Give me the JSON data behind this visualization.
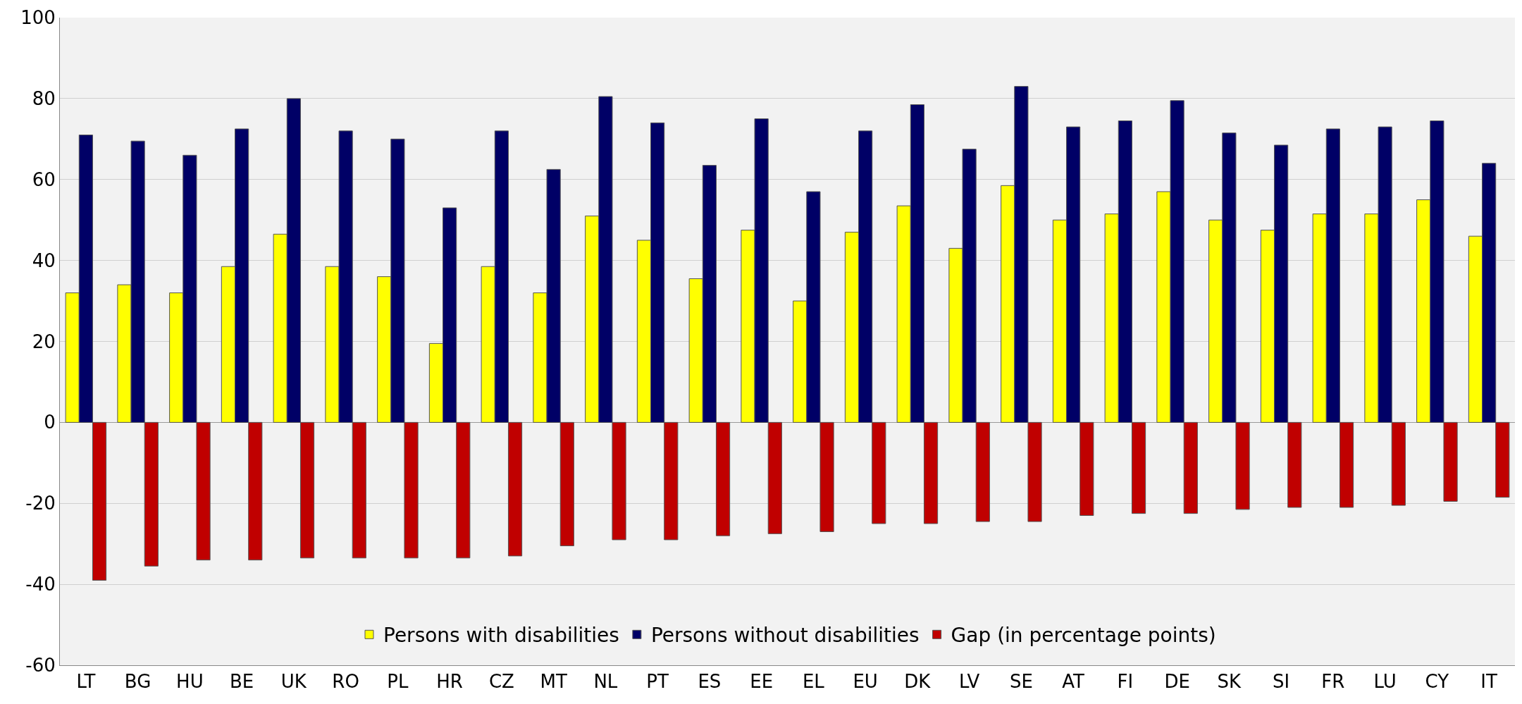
{
  "chart_data": {
    "type": "bar",
    "categories": [
      "LT",
      "BG",
      "HU",
      "BE",
      "UK",
      "RO",
      "PL",
      "HR",
      "CZ",
      "MT",
      "NL",
      "PT",
      "ES",
      "EE",
      "EL",
      "EU",
      "DK",
      "LV",
      "SE",
      "AT",
      "FI",
      "DE",
      "SK",
      "SI",
      "FR",
      "LU",
      "CY",
      "IT"
    ],
    "series": [
      {
        "name": "Persons with disabilities",
        "color": "#ffff00",
        "values": [
          32,
          34,
          32,
          38.5,
          46.5,
          38.5,
          36,
          19.5,
          38.5,
          32,
          51,
          45,
          35.5,
          47.5,
          30,
          47,
          53.5,
          43,
          58.5,
          50,
          51.5,
          57,
          50,
          47.5,
          51.5,
          51.5,
          55,
          46
        ]
      },
      {
        "name": "Persons without disabilities",
        "color": "#000066",
        "values": [
          71,
          69.5,
          66,
          72.5,
          80,
          72,
          70,
          53,
          72,
          62.5,
          80.5,
          74,
          63.5,
          75,
          57,
          72,
          78.5,
          67.5,
          83,
          73,
          74.5,
          79.5,
          71.5,
          68.5,
          72.5,
          73,
          74.5,
          64
        ]
      },
      {
        "name": "Gap (in percentage points)",
        "color": "#c00000",
        "values": [
          -39,
          -35.5,
          -34,
          -34,
          -33.5,
          -33.5,
          -33.5,
          -33.5,
          -33,
          -30.5,
          -29,
          -29,
          -28,
          -27.5,
          -27,
          -25,
          -25,
          -24.5,
          -24.5,
          -23,
          -22.5,
          -22.5,
          -21.5,
          -21,
          -21,
          -20.5,
          -19.5,
          -18.5
        ]
      }
    ],
    "ylim": [
      -60,
      100
    ],
    "yticks": [
      -60,
      -40,
      -20,
      0,
      20,
      40,
      60,
      80,
      100
    ],
    "grid": "y",
    "legend": "bottom"
  }
}
